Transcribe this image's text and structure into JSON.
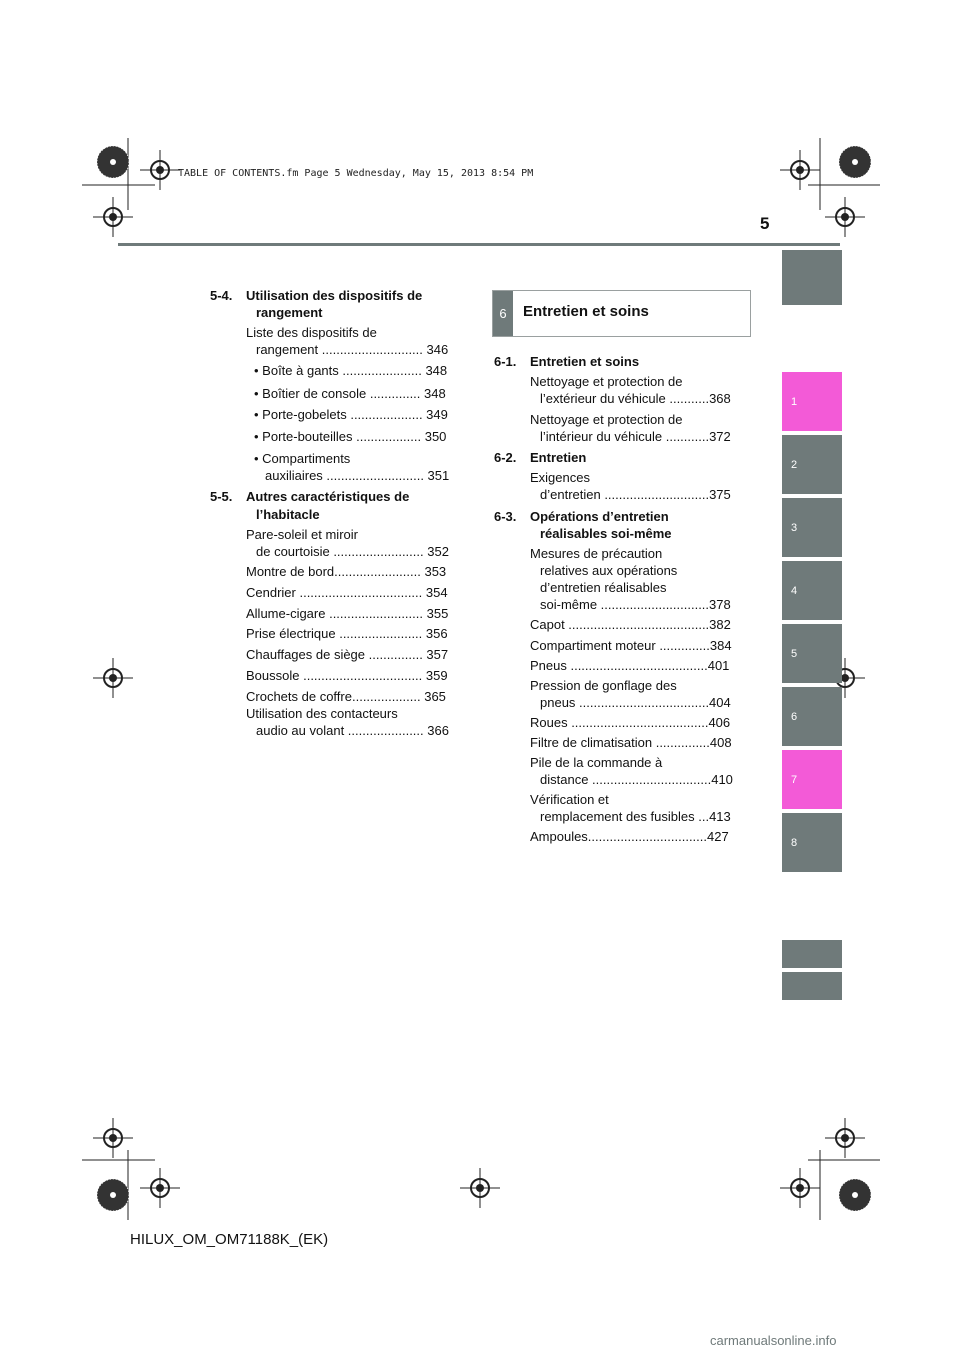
{
  "page": {
    "number": "5",
    "stamp": "TABLE OF CONTENTS.fm  Page 5  Wednesday, May 15, 2013  8:54 PM",
    "footer": "HILUX_OM_OM71188K_(EK)",
    "watermark": "carmanualsonline.info"
  },
  "colors": {
    "tab_gray": "#6f7a7a",
    "tab_pink": "#f35ad7",
    "header_bar": "#6f7a7a"
  },
  "side_tabs": [
    {
      "label": "",
      "color": "gray"
    },
    {
      "label": "1",
      "color": "pink"
    },
    {
      "label": "2",
      "color": "gray"
    },
    {
      "label": "3",
      "color": "gray"
    },
    {
      "label": "4",
      "color": "gray"
    },
    {
      "label": "5",
      "color": "gray"
    },
    {
      "label": "6",
      "color": "gray"
    },
    {
      "label": "7",
      "color": "pink"
    },
    {
      "label": "8",
      "color": "gray"
    },
    {
      "label": "",
      "color": "gray"
    },
    {
      "label": "",
      "color": "gray"
    }
  ],
  "left": {
    "s54": {
      "num": "5-4.",
      "title1": "Utilisation des dispositifs de",
      "title2": "rangement",
      "e1a": "Liste des dispositifs de",
      "e1b": "rangement ............................ 346",
      "e2": "• Boîte à gants ...................... 348",
      "e3": "• Boîtier de console .............. 348",
      "e4": "• Porte-gobelets .................... 349",
      "e5": "• Porte-bouteilles .................. 350",
      "e6a": "• Compartiments",
      "e6b": "auxiliaires ........................... 351"
    },
    "s55": {
      "num": "5-5.",
      "title1": "Autres caractéristiques de",
      "title2": "l’habitacle",
      "e1a": "Pare-soleil et miroir",
      "e1b": "de courtoisie ......................... 352",
      "e2": "Montre de bord........................ 353",
      "e3": "Cendrier .................................. 354",
      "e4": "Allume-cigare .......................... 355",
      "e5": "Prise électrique ....................... 356",
      "e6": "Chauffages de siège ............... 357",
      "e7": "Boussole ................................. 359",
      "e8": "Crochets de coffre................... 365",
      "e9a": "Utilisation des contacteurs",
      "e9b": "audio au volant ..................... 366"
    }
  },
  "right": {
    "box": {
      "num": "6",
      "title": "Entretien et soins"
    },
    "s61": {
      "num": "6-1.",
      "title": "Entretien et soins",
      "e1a": "Nettoyage et protection de",
      "e1b": "l’extérieur du véhicule ...........368",
      "e2a": "Nettoyage et protection de",
      "e2b": "l’intérieur du véhicule ............372"
    },
    "s62": {
      "num": "6-2.",
      "title": "Entretien",
      "e1a": "Exigences",
      "e1b": "d’entretien .............................375"
    },
    "s63": {
      "num": "6-3.",
      "title1": "Opérations d’entretien",
      "title2": "réalisables soi-même",
      "e1a": "Mesures de précaution",
      "e1b": "relatives aux opérations",
      "e1c": "d’entretien réalisables",
      "e1d": "soi-même ..............................378",
      "e2": "Capot .......................................382",
      "e3": "Compartiment moteur ..............384",
      "e4": "Pneus ......................................401",
      "e5a": "Pression de gonflage des",
      "e5b": "pneus ....................................404",
      "e6": "Roues ......................................406",
      "e7": "Filtre de climatisation ...............408",
      "e8a": "Pile de la commande à",
      "e8b": "distance .................................410",
      "e9a": "Vérification et",
      "e9b": "remplacement des fusibles ...413",
      "e10": "Ampoules.................................427"
    }
  }
}
